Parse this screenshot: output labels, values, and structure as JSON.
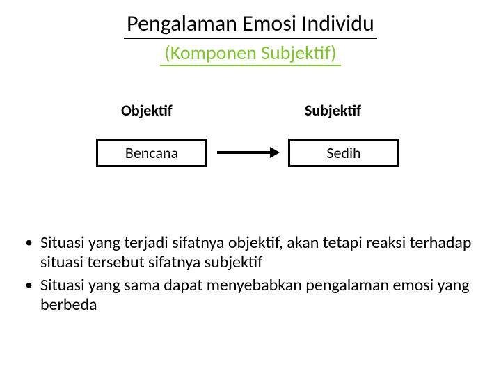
{
  "title": "Pengalaman Emosi Individu",
  "subtitle": "(Komponen Subjektif)",
  "diagram": {
    "left_header": "Objektif",
    "right_header": "Subjektif",
    "left_box": "Bencana",
    "right_box": "Sedih",
    "box_border_color": "#000000",
    "arrow_color": "#000000"
  },
  "bullets": [
    "Situasi yang terjadi sifatnya objektif, akan tetapi reaksi terhadap situasi tersebut sifatnya subjektif",
    "Situasi yang sama dapat menyebabkan pengalaman emosi yang berbeda"
  ],
  "colors": {
    "title_color": "#000000",
    "subtitle_color": "#80c332",
    "text_color": "#000000",
    "background": "#ffffff"
  },
  "typography": {
    "title_fontsize": 32,
    "subtitle_fontsize": 28,
    "header_fontsize": 22,
    "box_fontsize": 22,
    "bullet_fontsize": 24,
    "font_family": "Calibri"
  }
}
